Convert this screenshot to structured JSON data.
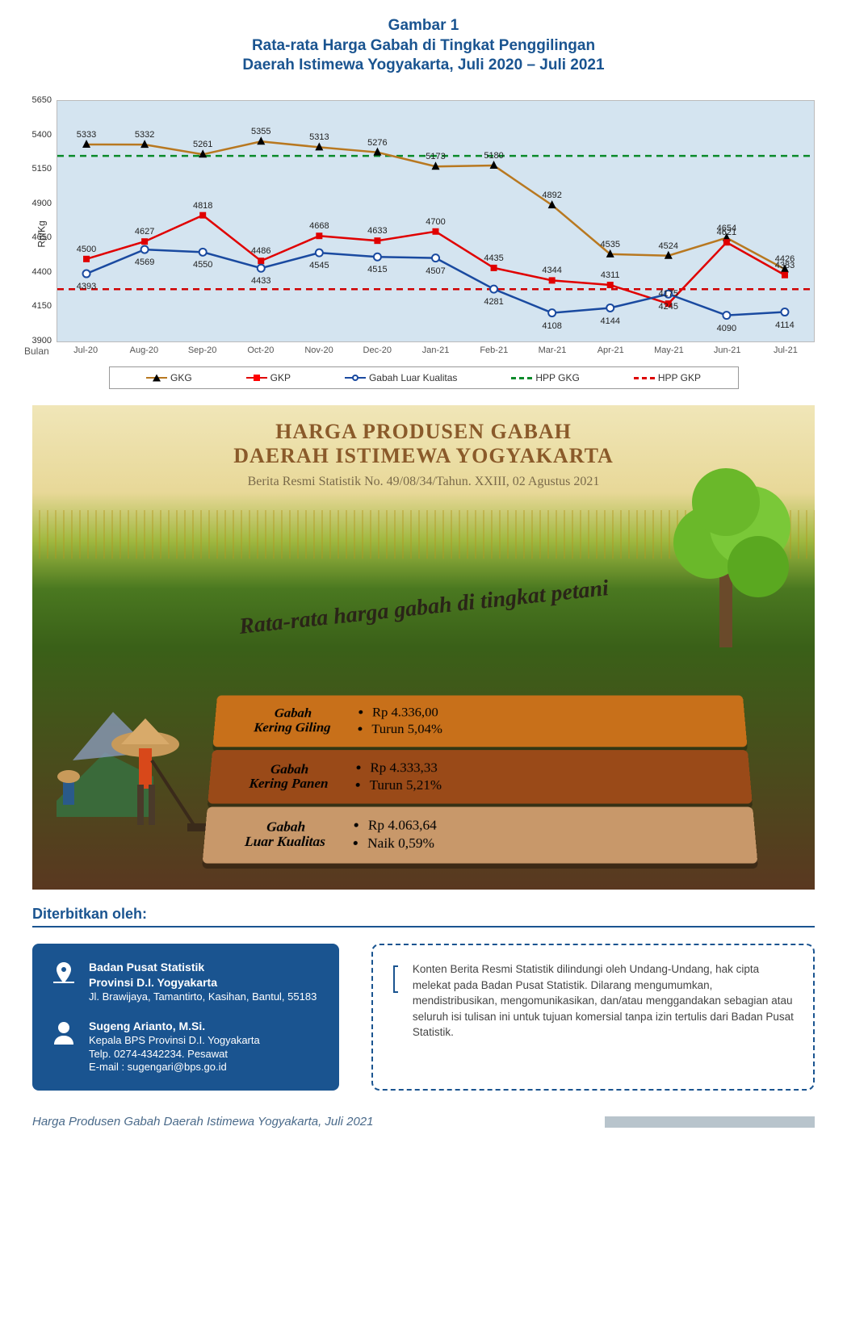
{
  "title": {
    "line1": "Gambar 1",
    "line2": "Rata-rata Harga Gabah di Tingkat Penggilingan",
    "line3": "Daerah Istimewa Yogyakarta, Juli 2020 – Juli 2021"
  },
  "chart": {
    "y_title": "Rp/Kg",
    "x_title": "Bulan",
    "ylim": [
      3900,
      5650
    ],
    "ytick_step": 250,
    "yticks": [
      3900,
      4150,
      4400,
      4650,
      4900,
      5150,
      5400,
      5650
    ],
    "background_color": "#d4e4f0",
    "categories": [
      "Jul-20",
      "Aug-20",
      "Sep-20",
      "Oct-20",
      "Nov-20",
      "Dec-20",
      "Jan-21",
      "Feb-21",
      "Mar-21",
      "Apr-21",
      "May-21",
      "Jun-21",
      "Jul-21"
    ],
    "series": {
      "gkg": {
        "label": "GKG",
        "color": "#b87820",
        "marker": "triangle",
        "marker_color": "#000",
        "values": [
          5333,
          5332,
          5261,
          5355,
          5313,
          5276,
          5173,
          5180,
          4892,
          4535,
          4524,
          4654,
          4426
        ]
      },
      "gkp": {
        "label": "GKP",
        "color": "#e00000",
        "marker": "square",
        "marker_color": "#e00000",
        "values": [
          4500,
          4627,
          4818,
          4486,
          4668,
          4633,
          4700,
          4435,
          4344,
          4311,
          4175,
          4621,
          4383
        ]
      },
      "glk": {
        "label": "Gabah Luar Kualitas",
        "color": "#1a4aa0",
        "marker": "circle",
        "marker_color": "#1a4aa0",
        "values": [
          4393,
          4569,
          4550,
          4433,
          4545,
          4515,
          4507,
          4281,
          4108,
          4144,
          4245,
          4090,
          4114
        ]
      },
      "hpp_gkg": {
        "label": "HPP GKG",
        "color": "#0a8a2a",
        "style": "dashed",
        "value": 5250
      },
      "hpp_gkp": {
        "label": "HPP GKP",
        "color": "#d00000",
        "style": "dashed",
        "value": 4280
      }
    }
  },
  "infographic": {
    "title1": "HARGA PRODUSEN GABAH",
    "title2": "DAERAH ISTIMEWA YOGYAKARTA",
    "subtitle": "Berita Resmi Statistik No. 49/08/34/Tahun. XXIII, 02 Agustus 2021",
    "banner": "Rata-rata harga gabah di tingkat petani",
    "plates": [
      {
        "label": "Gabah Kering Giling",
        "price": "Rp 4.336,00",
        "change": "Turun 5,04%",
        "bg": "#c8701a"
      },
      {
        "label": "Gabah Kering Panen",
        "price": "Rp 4.333,33",
        "change": "Turun 5,21%",
        "bg": "#9a4a18"
      },
      {
        "label": "Gabah Luar Kualitas",
        "price": "Rp 4.063,64",
        "change": "Naik 0,59%",
        "bg": "#c8986a"
      }
    ]
  },
  "published_label": "Diterbitkan oleh:",
  "publisher": {
    "org1": "Badan Pusat Statistik",
    "org2": "Provinsi D.I. Yogyakarta",
    "address": "Jl. Brawijaya, Tamantirto, Kasihan, Bantul, 55183",
    "person": "Sugeng Arianto, M.Si.",
    "role": "Kepala BPS Provinsi D.I. Yogyakarta",
    "phone": "Telp. 0274-4342234. Pesawat",
    "email": "E-mail : sugengari@bps.go.id"
  },
  "notice": "Konten Berita Resmi Statistik dilindungi oleh Undang-Undang, hak cipta melekat pada Badan Pusat Statistik. Dilarang mengumumkan, mendistribusikan, mengomunikasikan, dan/atau menggandakan sebagian atau seluruh isi tulisan ini untuk tujuan komersial tanpa izin tertulis dari Badan Pusat Statistik.",
  "footer_title": "Harga Produsen Gabah Daerah Istimewa Yogyakarta, Juli 2021"
}
